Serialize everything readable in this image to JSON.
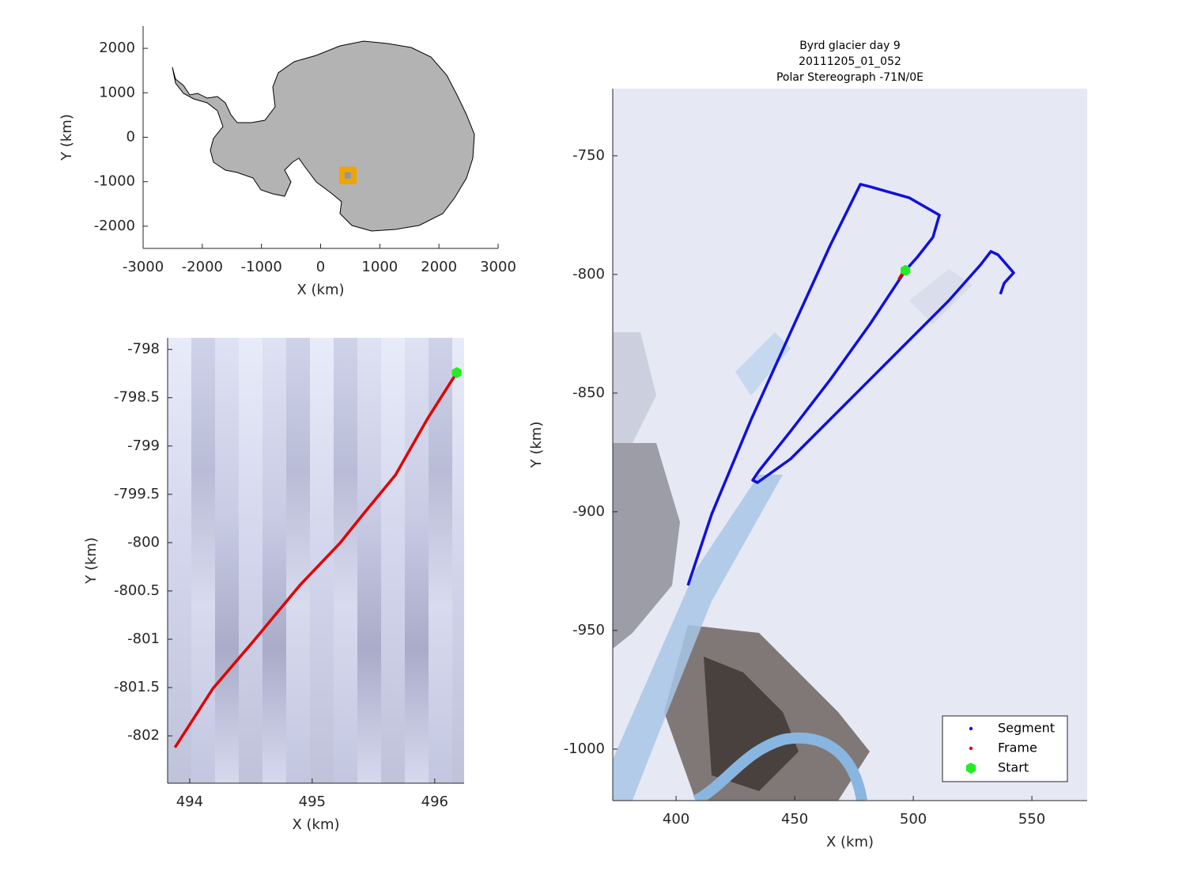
{
  "chart_data": [
    {
      "type": "scatter",
      "xlabel": "X (km)",
      "ylabel": "Y (km)",
      "xlim": [
        -3000,
        3000
      ],
      "ylim": [
        -2500,
        2500
      ],
      "xticks": [
        -3000,
        -2000,
        -1000,
        0,
        1000,
        2000,
        3000
      ],
      "yticks": [
        -2000,
        -1000,
        0,
        1000,
        2000
      ],
      "series": [
        {
          "color": "#f0a400",
          "style": "square",
          "x": [
            460
          ],
          "values": [
            -860
          ]
        }
      ]
    },
    {
      "type": "scatter",
      "xlabel": "X (km)",
      "ylabel": "Y (km)",
      "xlim": [
        493.82,
        496.24
      ],
      "ylim": [
        -802.49,
        -797.88
      ],
      "xticks": [
        494,
        495,
        496
      ],
      "yticks": [
        -802,
        -801.5,
        -801,
        -800.5,
        -800,
        -799.5,
        -799,
        -798.5,
        -798
      ],
      "series": [
        {
          "color": "#e00000",
          "style": "line",
          "x": [
            496.18,
            495.94,
            495.68,
            495.42,
            495.23,
            494.9,
            494.52,
            494.19,
            493.88
          ],
          "values": [
            -798.24,
            -798.72,
            -799.3,
            -799.7,
            -800,
            -800.44,
            -801.02,
            -801.51,
            -802.12
          ]
        },
        {
          "color": "#22ee22",
          "style": "hexagon",
          "x": [
            496.18
          ],
          "values": [
            -798.24
          ]
        }
      ]
    },
    {
      "type": "scatter",
      "title": "Byrd glacier day 9",
      "subtitle": [
        "20111205_01_052",
        "Polar Stereograph -71N/0E"
      ],
      "xlabel": "X (km)",
      "ylabel": "Y (km)",
      "xlim": [
        373.3,
        573.3
      ],
      "ylim": [
        -1021.7,
        -721.7
      ],
      "xticks": [
        400,
        450,
        500,
        550
      ],
      "yticks": [
        -1000,
        -950,
        -900,
        -850,
        -800,
        -750
      ],
      "legend": "southeast",
      "series": [
        {
          "name": "Segment",
          "color": "#1010dd",
          "style": "line",
          "x": [
            405,
            415,
            431.7,
            448.3,
            465,
            477.7,
            481.7,
            498.3,
            511,
            508.3,
            501.7,
            496.7,
            481.7,
            465,
            448.3,
            435,
            432.3,
            434.3,
            448.3,
            481.7,
            515,
            528.3,
            532.7,
            535.7,
            542.3,
            538.3,
            536.7
          ],
          "values": [
            -931,
            -901,
            -861,
            -824.3,
            -787.7,
            -762,
            -763,
            -767.7,
            -775,
            -784.3,
            -792.7,
            -798.3,
            -821,
            -844.3,
            -866,
            -882.7,
            -886.7,
            -887.7,
            -877.7,
            -844.3,
            -811,
            -796,
            -790.3,
            -791.7,
            -799.3,
            -803.7,
            -808.3
          ]
        },
        {
          "name": "Frame",
          "color": "#e00000",
          "style": "line",
          "x": [
            496.18,
            493.88
          ],
          "values": [
            -798.24,
            -802.12
          ]
        },
        {
          "name": "Start",
          "color": "#22ee22",
          "style": "hexagon",
          "x": [
            496.7
          ],
          "values": [
            -798.3
          ]
        }
      ]
    }
  ]
}
